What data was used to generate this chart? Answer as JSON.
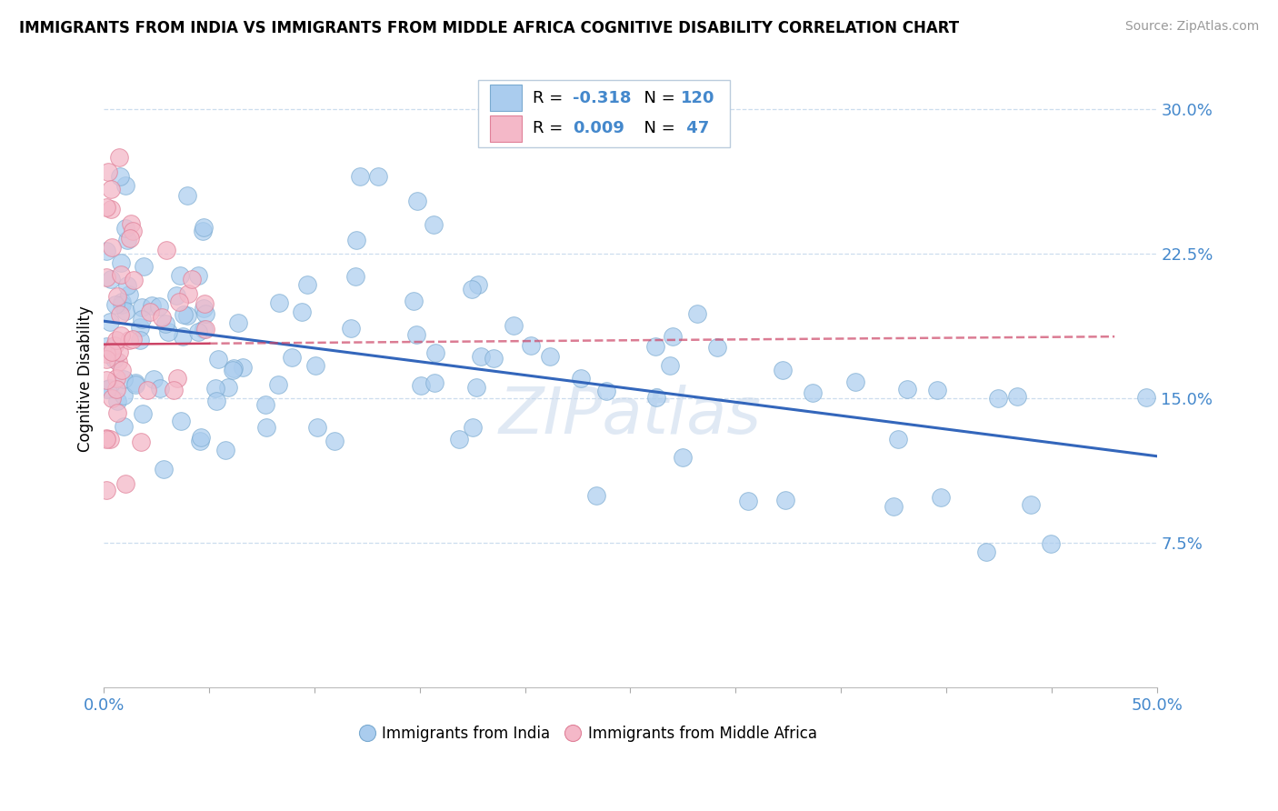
{
  "title": "IMMIGRANTS FROM INDIA VS IMMIGRANTS FROM MIDDLE AFRICA COGNITIVE DISABILITY CORRELATION CHART",
  "source": "Source: ZipAtlas.com",
  "ylabel": "Cognitive Disability",
  "xlim": [
    0.0,
    0.5
  ],
  "ylim": [
    0.0,
    0.32
  ],
  "ytick_positions": [
    0.075,
    0.15,
    0.225,
    0.3
  ],
  "ytick_labels": [
    "7.5%",
    "15.0%",
    "22.5%",
    "30.0%"
  ],
  "india_color": "#aaccee",
  "india_edge_color": "#7aaad0",
  "middle_africa_color": "#f4b8c8",
  "middle_africa_edge_color": "#e08098",
  "india_trend_color": "#3366bb",
  "middle_africa_trend_color": "#cc4466",
  "india_R": "-0.318",
  "india_N": "120",
  "middle_africa_R": "0.009",
  "middle_africa_N": "47",
  "watermark": "ZIPatlas",
  "india_trend_x0": 0.0,
  "india_trend_y0": 0.19,
  "india_trend_x1": 0.5,
  "india_trend_y1": 0.12,
  "africa_trend_x0": 0.0,
  "africa_trend_y0": 0.178,
  "africa_trend_x1": 0.48,
  "africa_trend_y1": 0.182
}
